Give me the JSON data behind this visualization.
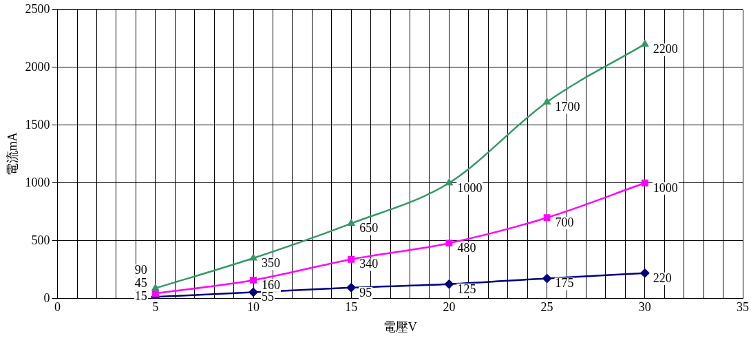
{
  "chart_data": {
    "type": "line",
    "xlabel": "電壓V",
    "ylabel": "電流mA",
    "x": [
      5,
      10,
      15,
      20,
      25,
      30
    ],
    "series": [
      {
        "color": "#339966",
        "marker": "triangle",
        "values": [
          90,
          350,
          650,
          1000,
          1700,
          2200
        ]
      },
      {
        "color": "#ff00ff",
        "marker": "square",
        "values": [
          45,
          160,
          340,
          480,
          700,
          1000
        ]
      },
      {
        "color": "#000080",
        "marker": "diamond",
        "values": [
          15,
          55,
          95,
          125,
          175,
          220
        ]
      }
    ],
    "xlim": [
      0,
      35
    ],
    "xticks": [
      0,
      {
        "value": 1,
        "label": null
      },
      {
        "value": 2,
        "label": null
      },
      {
        "value": 3,
        "label": null
      },
      {
        "value": 4,
        "label": null
      },
      5,
      {
        "value": 6,
        "label": null
      },
      {
        "value": 7,
        "label": null
      },
      {
        "value": 8,
        "label": null
      },
      {
        "value": 9,
        "label": null
      },
      10,
      {
        "value": 11,
        "label": null
      },
      {
        "value": 12,
        "label": null
      },
      {
        "value": 13,
        "label": null
      },
      {
        "value": 14,
        "label": null
      },
      15,
      {
        "value": 16,
        "label": null
      },
      {
        "value": 17,
        "label": null
      },
      {
        "value": 18,
        "label": null
      },
      {
        "value": 19,
        "label": null
      },
      20,
      {
        "value": 21,
        "label": null
      },
      {
        "value": 22,
        "label": null
      },
      {
        "value": 23,
        "label": null
      },
      {
        "value": 24,
        "label": null
      },
      25,
      {
        "value": 26,
        "label": null
      },
      {
        "value": 27,
        "label": null
      },
      {
        "value": 28,
        "label": null
      },
      {
        "value": 29,
        "label": null
      },
      30,
      {
        "value": 31,
        "label": null
      },
      {
        "value": 32,
        "label": null
      },
      {
        "value": 33,
        "label": null
      },
      {
        "value": 34,
        "label": null
      },
      35
    ],
    "ylim": [
      0,
      2500
    ],
    "yticks": [
      0,
      500,
      1000,
      1500,
      2000,
      2500
    ],
    "grid": true,
    "legend": false,
    "data_labels": true,
    "line_style": "solid"
  }
}
